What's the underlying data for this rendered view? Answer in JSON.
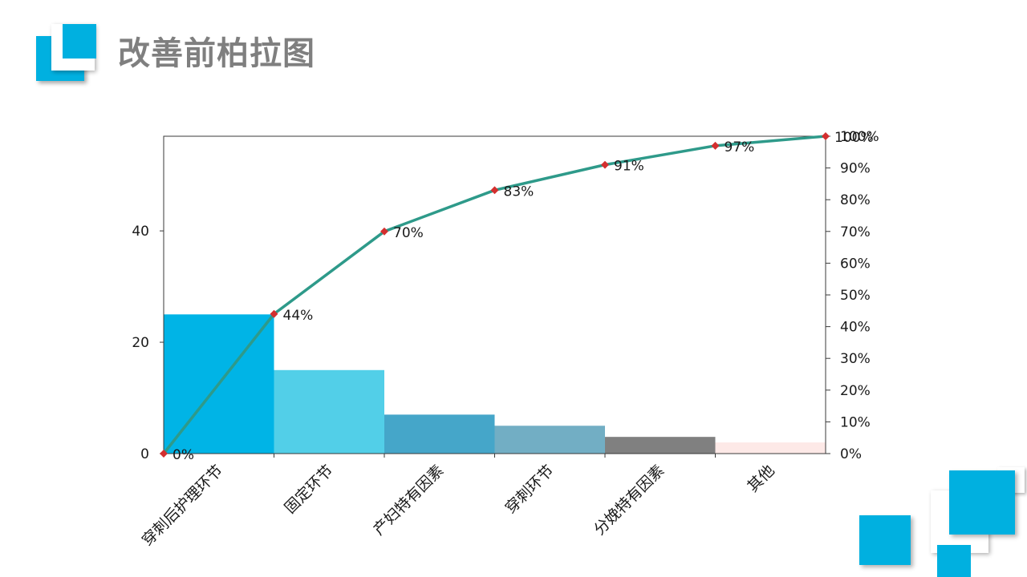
{
  "slide": {
    "title": "改善前柏拉图"
  },
  "theme": {
    "accent": "#00b0e0",
    "title_color": "#7f7f7f",
    "line_color": "#2e9a8a",
    "marker_color": "#d32f2f"
  },
  "chart_data": {
    "type": "bar",
    "categories": [
      "穿刺后护理环节",
      "固定环节",
      "产妇特有因素",
      "穿刺环节",
      "分娩特有因素",
      "其他"
    ],
    "values": [
      25,
      15,
      7,
      5,
      3,
      2
    ],
    "bar_colors": [
      "#00b4e6",
      "#52cfe8",
      "#45a6c9",
      "#72aec4",
      "#808080",
      "#fde9e7"
    ],
    "ylim": [
      0,
      57
    ],
    "y_ticks": [
      0,
      20,
      40
    ],
    "y2_ticks": [
      0,
      10,
      20,
      30,
      40,
      50,
      60,
      70,
      80,
      90,
      100
    ],
    "y2_tick_labels": [
      "0%",
      "10%",
      "20%",
      "30%",
      "40%",
      "50%",
      "60%",
      "70%",
      "80%",
      "90%",
      "100%"
    ],
    "cumulative": {
      "type": "line",
      "values": [
        0,
        44,
        70,
        83,
        91,
        97,
        100
      ],
      "labels": [
        "0%",
        "44%",
        "70%",
        "83%",
        "91%",
        "97%",
        "100%"
      ]
    },
    "grid": false,
    "legend": "none"
  }
}
